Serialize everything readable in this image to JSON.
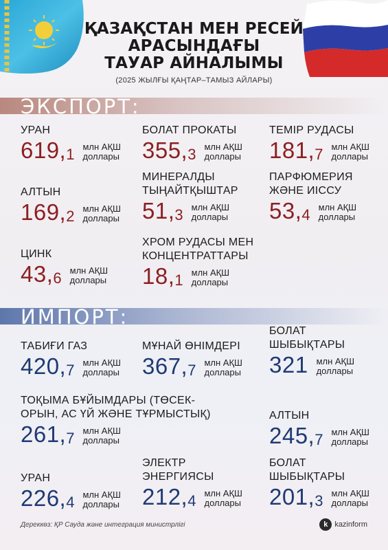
{
  "header": {
    "title_lines": [
      "ҚАЗАҚСТАН МЕН РЕСЕЙ",
      "АРАСЫНДАҒЫ",
      "ТАУАР АЙНАЛЫМЫ"
    ],
    "subtitle": "(2025 ЖЫЛҒЫ ҚАҢТАР–ТАМЫЗ АЙЛАРЫ)"
  },
  "colors": {
    "export": "#8c1f22",
    "import": "#1f3a73"
  },
  "export": {
    "label": "ЭКСПОРТ:",
    "items": [
      {
        "name": "УРАН",
        "int": "619,",
        "dec": "1",
        "unit1": "млн АҚШ",
        "unit2": "доллары"
      },
      {
        "name": "БОЛАТ ПРОКАТЫ",
        "int": "355,",
        "dec": "3",
        "unit1": "млн АҚШ",
        "unit2": "доллары"
      },
      {
        "name": "ТЕМІР РУДАСЫ",
        "int": "181,",
        "dec": "7",
        "unit1": "млн АҚШ",
        "unit2": "доллары"
      },
      {
        "name": "АЛТЫН",
        "int": "169,",
        "dec": "2",
        "unit1": "млн АҚШ",
        "unit2": "доллары"
      },
      {
        "name1": "МИНЕРАЛДЫ",
        "name2": "ТЫҢАЙТҚЫШТАР",
        "int": "51,",
        "dec": "3",
        "unit1": "млн АҚШ",
        "unit2": "доллары"
      },
      {
        "name1": "ПАРФЮМЕРИЯ",
        "name2": "ЖӘНЕ ИІССУ",
        "int": "53,",
        "dec": "4",
        "unit1": "млн АҚШ",
        "unit2": "доллары"
      },
      {
        "name": "ЦИНК",
        "int": "43,",
        "dec": "6",
        "unit1": "млн АҚШ",
        "unit2": "доллары"
      },
      {
        "name1": "ХРОМ РУДАСЫ МЕН",
        "name2": "КОНЦЕНТРАТТАРЫ",
        "int": "18,",
        "dec": "1",
        "unit1": "млн АҚШ",
        "unit2": "доллары"
      }
    ]
  },
  "import": {
    "label": "ИМПОРТ:",
    "items": [
      {
        "name": "ТАБИҒИ ГАЗ",
        "int": "420,",
        "dec": "7",
        "unit1": "млн АҚШ",
        "unit2": "доллары"
      },
      {
        "name": "МҰНАЙ ӨНІМДЕРІ",
        "int": "367,",
        "dec": "7",
        "unit1": "млн АҚШ",
        "unit2": "доллары"
      },
      {
        "name1": "БОЛАТ",
        "name2": "ШЫБЫҚТАРЫ",
        "int": "321",
        "dec": "",
        "unit1": "млн АҚШ",
        "unit2": "доллары"
      },
      {
        "name1": "ТОҚЫМА БҰЙЫМДАРЫ (ТӨСЕК-",
        "name2": "ОРЫН, АС ҮЙ ЖӘНЕ ТҰРМЫСТЫҚ)",
        "int": "261,",
        "dec": "7",
        "unit1": "млн АҚШ",
        "unit2": "доллары"
      },
      {
        "name": "АЛТЫН",
        "int": "245,",
        "dec": "7",
        "unit1": "млн АҚШ",
        "unit2": "доллары"
      },
      {
        "name": "УРАН",
        "int": "226,",
        "dec": "4",
        "unit1": "млн АҚШ",
        "unit2": "доллары"
      },
      {
        "name1": "ЭЛЕКТР",
        "name2": "ЭНЕРГИЯСЫ",
        "int": "212,",
        "dec": "4",
        "unit1": "млн АҚШ",
        "unit2": "доллары"
      },
      {
        "name1": "БОЛАТ",
        "name2": "ШЫБЫҚТАРЫ",
        "int": "201,",
        "dec": "3",
        "unit1": "млн АҚШ",
        "unit2": "доллары"
      }
    ]
  },
  "footer": {
    "source": "Дереккөз: ҚР Сауда және интеграция министрлігі",
    "brand_letter": "k",
    "brand": "kazinform"
  }
}
